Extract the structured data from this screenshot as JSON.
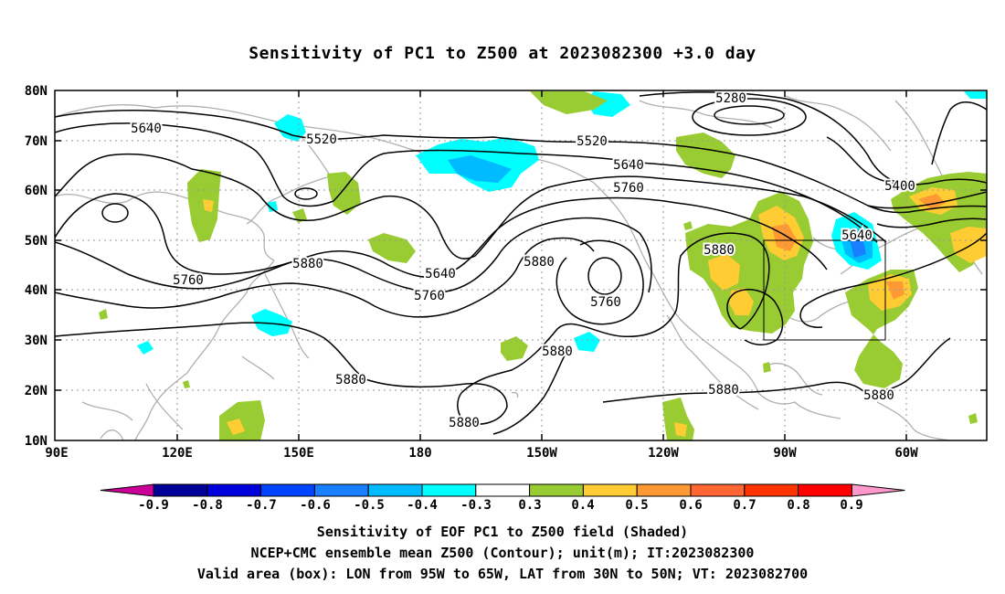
{
  "title": "Sensitivity of PC1 to Z500 at 2023082300 +3.0 day",
  "map": {
    "lat_labels": [
      "80N",
      "70N",
      "60N",
      "50N",
      "40N",
      "30N",
      "20N",
      "10N"
    ],
    "lon_labels": [
      "90E",
      "120E",
      "150E",
      "180",
      "150W",
      "120W",
      "90W",
      "60W"
    ],
    "contour_labels": [
      {
        "text": "5280"
      },
      {
        "text": "5400"
      },
      {
        "text": "5520"
      },
      {
        "text": "5520"
      },
      {
        "text": "5640"
      },
      {
        "text": "5640"
      },
      {
        "text": "5640"
      },
      {
        "text": "5640"
      },
      {
        "text": "5760"
      },
      {
        "text": "5760"
      },
      {
        "text": "5760"
      },
      {
        "text": "5760"
      },
      {
        "text": "5880"
      },
      {
        "text": "5880"
      },
      {
        "text": "5880"
      },
      {
        "text": "5880"
      },
      {
        "text": "5880"
      },
      {
        "text": "5880"
      },
      {
        "text": "5880"
      },
      {
        "text": "5880"
      }
    ],
    "valid_box": {
      "lon_from": "95W",
      "lon_to": "65W",
      "lat_from": "30N",
      "lat_to": "50N"
    }
  },
  "colorbar": {
    "colors": [
      "#cc0099",
      "#000099",
      "#0000dd",
      "#0044ff",
      "#1a7fff",
      "#00bbff",
      "#00ffff",
      "#ffffff",
      "#99cc33",
      "#ffcc33",
      "#ff9933",
      "#ff6633",
      "#ff3300",
      "#ff0000",
      "#ff99cc"
    ],
    "labels": [
      "-0.9",
      "-0.8",
      "-0.7",
      "-0.6",
      "-0.5",
      "-0.4",
      "-0.3",
      "0.3",
      "0.4",
      "0.5",
      "0.6",
      "0.7",
      "0.8",
      "0.9"
    ]
  },
  "captions": [
    "Sensitivity of EOF PC1 to Z500 field (Shaded)",
    "NCEP+CMC ensemble mean Z500 (Contour); unit(m); IT:2023082300",
    "Valid area (box): LON from 95W to 65W, LAT from 30N to 50N; VT: 2023082700"
  ]
}
